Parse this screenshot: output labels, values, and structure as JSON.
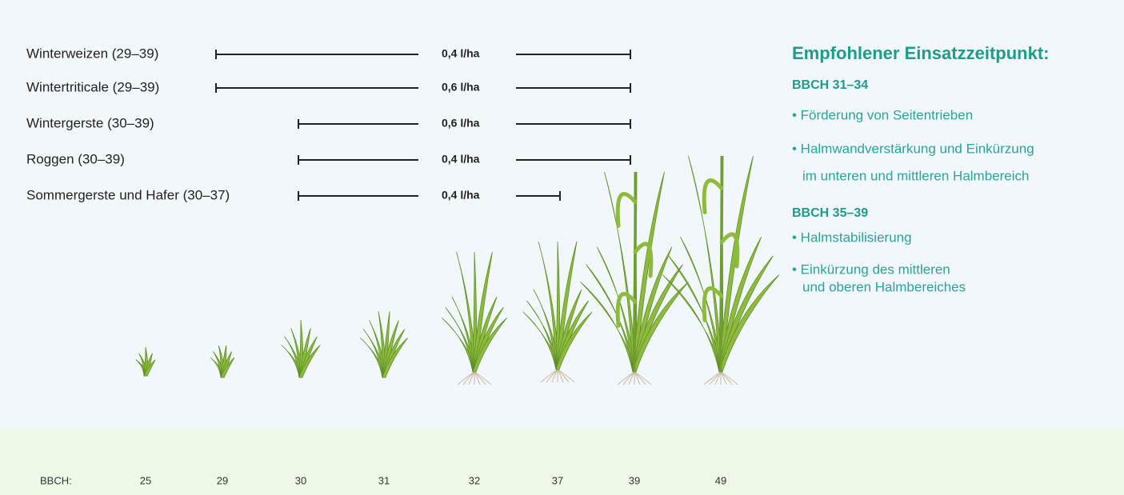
{
  "rows": [
    {
      "label": "Winterweizen (29–39)",
      "dose": "0,4 l/ha"
    },
    {
      "label": "Wintertriticale (29–39)",
      "dose": "0,6 l/ha"
    },
    {
      "label": "Wintergerste (30–39)",
      "dose": "0,6 l/ha"
    },
    {
      "label": "Roggen (30–39)",
      "dose": "0,4 l/ha"
    },
    {
      "label": "Sommergerste und Hafer (30–37)",
      "dose": "0,4 l/ha"
    }
  ],
  "aside": {
    "title": "Empfohlener Einsatzzeitpunkt:",
    "sections": [
      {
        "heading": "BBCH 31–34",
        "items": [
          [
            "• Förderung von Seitentrieben"
          ],
          [
            "• Halmwandverstärkung und Einkürzung",
            "im unteren und mittleren Halmbereich"
          ]
        ]
      },
      {
        "heading": "BBCH 35–39",
        "items": [
          [
            "• Halmstabilisierung"
          ],
          [
            "• Einkürzung des mittleren",
            "und oberen Halmbereiches"
          ]
        ]
      }
    ]
  },
  "axis": {
    "label": "BBCH:",
    "stages": [
      "25",
      "29",
      "30",
      "31",
      "32",
      "37",
      "39",
      "49"
    ]
  }
}
